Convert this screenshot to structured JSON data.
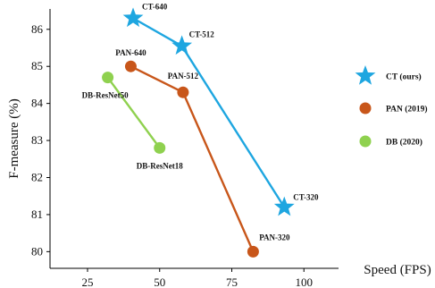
{
  "chart_data": {
    "type": "line",
    "xlabel": "Speed (FPS)",
    "ylabel": "F-measure (%)",
    "xlim": [
      12,
      112
    ],
    "ylim": [
      79.55,
      86.55
    ],
    "xticks": [
      25,
      50,
      75,
      100
    ],
    "yticks": [
      80,
      81,
      82,
      83,
      84,
      85,
      86
    ],
    "grid": false,
    "legend_position": "right",
    "series": [
      {
        "name": "CT (ours)",
        "color": "#1ea6e0",
        "marker": "star",
        "points": [
          {
            "x": 40.8,
            "y": 86.3,
            "label": "CT-640"
          },
          {
            "x": 57.7,
            "y": 85.55,
            "label": "CT-512"
          },
          {
            "x": 93.2,
            "y": 81.2,
            "label": "CT-320"
          }
        ]
      },
      {
        "name": "PAN (2019)",
        "color": "#c8561a",
        "marker": "circle",
        "points": [
          {
            "x": 40.0,
            "y": 85.0,
            "label": "PAN-640"
          },
          {
            "x": 58.1,
            "y": 84.3,
            "label": "PAN-512"
          },
          {
            "x": 82.4,
            "y": 80.0,
            "label": "PAN-320"
          }
        ]
      },
      {
        "name": "DB (2020)",
        "color": "#8fd14f",
        "marker": "circle",
        "points": [
          {
            "x": 32.0,
            "y": 84.7,
            "label": "DB-ResNet50"
          },
          {
            "x": 50.0,
            "y": 82.8,
            "label": "DB-ResNet18"
          }
        ]
      }
    ]
  }
}
